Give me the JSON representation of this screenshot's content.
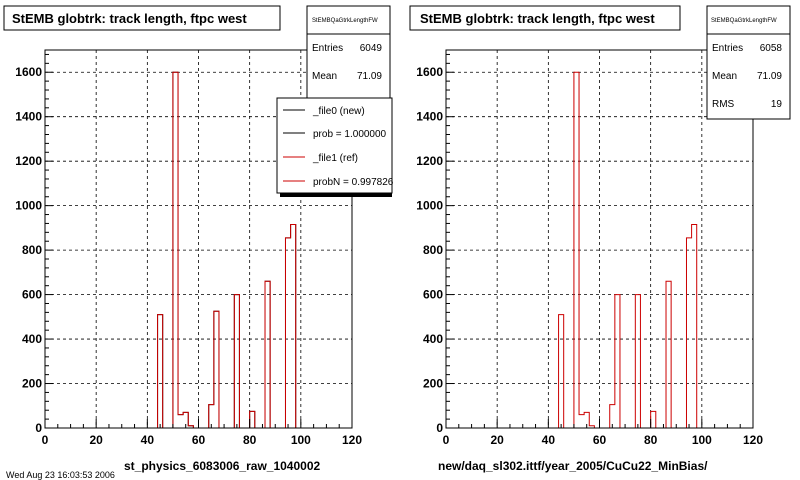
{
  "footer_text": "Wed Aug 23 16:03:53 2006",
  "colors": {
    "new": "#000000",
    "ref": "#cc0000",
    "grid": "#000000",
    "frame": "#000000"
  },
  "chart_data": [
    {
      "type": "histogram",
      "title": "StEMB globtrk: track length, ftpc west",
      "xlabel": "st_physics_6083006_raw_1040002",
      "ylabel": "",
      "xlim": [
        0,
        120
      ],
      "ylim": [
        0,
        1700
      ],
      "grid": true,
      "xticks": [
        0,
        20,
        40,
        60,
        80,
        100,
        120
      ],
      "yticks": [
        0,
        200,
        400,
        600,
        800,
        1000,
        1200,
        1400,
        1600
      ],
      "bin_width": 2,
      "x_start": 0,
      "stats": {
        "name": "StEMBQaGtrkLengthFW",
        "rows": [
          {
            "label": "Entries",
            "value": "6049"
          },
          {
            "label": "Mean",
            "value": "71.09"
          }
        ]
      },
      "legend": {
        "position": "top-right",
        "entries": [
          {
            "label": "_file0 (new)",
            "color": "#000000"
          },
          {
            "label": "prob = 1.000000",
            "color": "#000000"
          },
          {
            "label": "_file1 (ref)",
            "color": "#cc0000"
          },
          {
            "label": "probN = 0.997826",
            "color": "#cc0000"
          }
        ]
      },
      "series": [
        {
          "name": "_file0 (new)",
          "color": "#000000",
          "values": [
            0,
            0,
            0,
            0,
            0,
            0,
            0,
            0,
            0,
            0,
            0,
            0,
            0,
            0,
            0,
            0,
            0,
            0,
            0,
            0,
            0,
            0,
            510,
            0,
            0,
            1600,
            60,
            70,
            10,
            0,
            0,
            0,
            105,
            525,
            0,
            0,
            0,
            600,
            0,
            0,
            75,
            0,
            0,
            660,
            0,
            0,
            0,
            855,
            915,
            0,
            0,
            0,
            0,
            0,
            0,
            0,
            0,
            0,
            0,
            0
          ]
        },
        {
          "name": "_file1 (ref)",
          "color": "#cc0000",
          "values": [
            0,
            0,
            0,
            0,
            0,
            0,
            0,
            0,
            0,
            0,
            0,
            0,
            0,
            0,
            0,
            0,
            0,
            0,
            0,
            0,
            0,
            0,
            510,
            0,
            0,
            1600,
            60,
            70,
            10,
            0,
            0,
            0,
            105,
            525,
            0,
            0,
            0,
            600,
            0,
            0,
            75,
            0,
            0,
            660,
            0,
            0,
            0,
            855,
            915,
            0,
            0,
            0,
            0,
            0,
            0,
            0,
            0,
            0,
            0,
            0
          ]
        }
      ]
    },
    {
      "type": "histogram",
      "title": "StEMB globtrk: track length, ftpc west",
      "xlabel": "new/daq_sl302.ittf/year_2005/CuCu22_MinBias/",
      "ylabel": "",
      "xlim": [
        0,
        120
      ],
      "ylim": [
        0,
        1700
      ],
      "grid": true,
      "xticks": [
        0,
        20,
        40,
        60,
        80,
        100,
        120
      ],
      "yticks": [
        0,
        200,
        400,
        600,
        800,
        1000,
        1200,
        1400,
        1600
      ],
      "bin_width": 2,
      "x_start": 0,
      "stats": {
        "name": "StEMBQaGtrkLengthFW",
        "rows": [
          {
            "label": "Entries",
            "value": "6058"
          },
          {
            "label": "Mean",
            "value": "71.09"
          },
          {
            "label": "RMS",
            "value": "19"
          }
        ]
      },
      "series": [
        {
          "name": "",
          "color": "#cc0000",
          "values": [
            0,
            0,
            0,
            0,
            0,
            0,
            0,
            0,
            0,
            0,
            0,
            0,
            0,
            0,
            0,
            0,
            0,
            0,
            0,
            0,
            0,
            0,
            510,
            0,
            0,
            1600,
            60,
            70,
            10,
            0,
            0,
            0,
            105,
            600,
            0,
            0,
            0,
            600,
            0,
            0,
            75,
            0,
            0,
            660,
            0,
            0,
            0,
            855,
            915,
            0,
            0,
            0,
            0,
            0,
            0,
            0,
            0,
            0,
            0,
            0
          ]
        }
      ]
    }
  ]
}
